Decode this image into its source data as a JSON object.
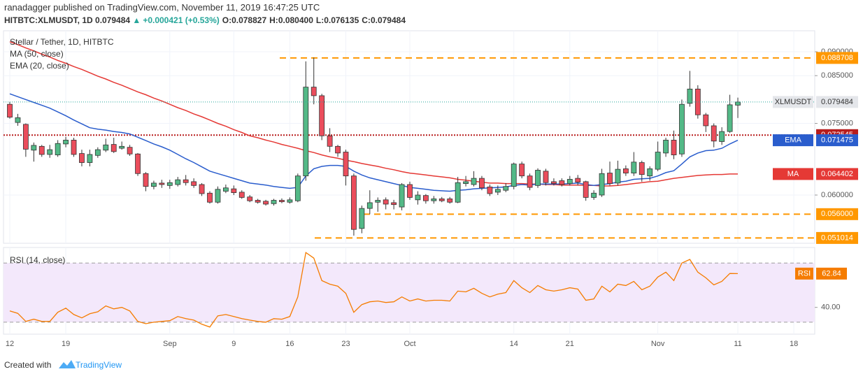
{
  "header": {
    "author": "ranadagger",
    "published": "published on TradingView.com, November 11, 2019 16:47:25 UTC",
    "symbol": "HITBTC:XLMUSDT, 1D",
    "last": "0.079484",
    "arrow": "▲",
    "change": "+0.000421 (+0.53%)",
    "ohlc": [
      {
        "label": "O:",
        "value": "0.078827"
      },
      {
        "label": "H:",
        "value": "0.080400"
      },
      {
        "label": "L:",
        "value": "0.076135"
      },
      {
        "label": "C:",
        "value": "0.079484"
      }
    ]
  },
  "chart_data": [
    {
      "type": "candlestick",
      "title": "Stellar / Tether, 1D, HITBTC",
      "categories": [
        "12",
        null,
        null,
        null,
        null,
        null,
        null,
        "19",
        null,
        null,
        null,
        null,
        null,
        null,
        null,
        null,
        null,
        null,
        null,
        null,
        "Sep",
        null,
        null,
        null,
        null,
        null,
        null,
        null,
        "9",
        null,
        null,
        null,
        null,
        null,
        null,
        "16",
        null,
        null,
        null,
        null,
        null,
        null,
        "23",
        null,
        null,
        null,
        null,
        null,
        null,
        null,
        "Oct",
        null,
        null,
        null,
        null,
        null,
        null,
        null,
        null,
        null,
        null,
        null,
        null,
        "14",
        null,
        null,
        null,
        null,
        null,
        null,
        "21",
        null,
        null,
        null,
        null,
        null,
        null,
        null,
        null,
        null,
        null,
        "Nov",
        null,
        null,
        null,
        null,
        null,
        null,
        null,
        null,
        null,
        "11",
        null,
        null,
        null,
        null,
        null,
        null,
        "18"
      ],
      "series": [
        {
          "name": "XLMUSDT",
          "up_color": "#53b987",
          "down_color": "#eb4d5c",
          "open": [
            0.079,
            0.0752,
            0.0748,
            0.0694,
            0.0702,
            0.0685,
            0.0684,
            0.0707,
            0.0715,
            0.0687,
            0.0668,
            0.0683,
            0.0694,
            0.0706,
            0.0698,
            0.07,
            0.0686,
            0.0645,
            0.0618,
            0.0625,
            0.062,
            0.0622,
            0.0632,
            0.0628,
            0.0622,
            0.0604,
            0.0585,
            0.0608,
            0.0613,
            0.0606,
            0.0596,
            0.0589,
            0.0587,
            0.0582,
            0.0589,
            0.0585,
            0.0588,
            0.064,
            0.0826,
            0.0808,
            0.0724,
            0.0702,
            0.069,
            0.064,
            0.053,
            0.0572,
            0.0585,
            0.059,
            0.0584,
            0.0575,
            0.0622,
            0.059,
            0.0599,
            0.0588,
            0.0592,
            0.0592,
            0.0585,
            0.0624,
            0.0622,
            0.0635,
            0.0617,
            0.0606,
            0.061,
            0.0618,
            0.0665,
            0.064,
            0.062,
            0.065,
            0.0628,
            0.063,
            0.0624,
            0.0635,
            0.0628,
            0.0595,
            0.06,
            0.0646,
            0.0625,
            0.0655,
            0.0646,
            0.0668,
            0.064,
            0.0654,
            0.0688,
            0.0715,
            0.0686,
            0.0792,
            0.0822,
            0.0768,
            0.0745,
            0.0712,
            0.0733,
            0.078827,
            null,
            null,
            null,
            null,
            null,
            null,
            null
          ],
          "high": [
            0.0795,
            0.077,
            0.075,
            0.071,
            0.0705,
            0.0705,
            0.0715,
            0.0722,
            0.072,
            0.0695,
            0.0695,
            0.07,
            0.0718,
            0.072,
            0.0712,
            0.0705,
            0.0688,
            0.0648,
            0.063,
            0.0632,
            0.0632,
            0.0638,
            0.0642,
            0.0635,
            0.0625,
            0.0608,
            0.0618,
            0.0622,
            0.062,
            0.061,
            0.06,
            0.0592,
            0.059,
            0.0592,
            0.0593,
            0.0595,
            0.0645,
            0.088,
            0.0888,
            0.0812,
            0.074,
            0.0705,
            0.0695,
            0.0645,
            0.0578,
            0.061,
            0.0595,
            0.0595,
            0.059,
            0.0625,
            0.0628,
            0.0608,
            0.0602,
            0.0598,
            0.0596,
            0.0596,
            0.0638,
            0.064,
            0.065,
            0.064,
            0.0622,
            0.062,
            0.0625,
            0.0668,
            0.067,
            0.0645,
            0.0656,
            0.0655,
            0.0635,
            0.0635,
            0.064,
            0.0642,
            0.063,
            0.061,
            0.0655,
            0.067,
            0.0672,
            0.0662,
            0.069,
            0.0672,
            0.066,
            0.0712,
            0.072,
            0.0735,
            0.08,
            0.086,
            0.083,
            0.0772,
            0.075,
            0.0742,
            0.081,
            0.0804,
            null,
            null,
            null,
            null,
            null,
            null,
            null
          ],
          "low": [
            0.076,
            0.0745,
            0.068,
            0.067,
            0.068,
            0.0678,
            0.068,
            0.07,
            0.068,
            0.066,
            0.066,
            0.0678,
            0.069,
            0.0688,
            0.0695,
            0.0682,
            0.064,
            0.0608,
            0.0612,
            0.0615,
            0.0613,
            0.0618,
            0.062,
            0.0615,
            0.0598,
            0.0582,
            0.0582,
            0.0604,
            0.06,
            0.0592,
            0.0585,
            0.0582,
            0.0578,
            0.0578,
            0.0583,
            0.0582,
            0.0585,
            0.063,
            0.079,
            0.0715,
            0.069,
            0.068,
            0.062,
            0.0515,
            0.052,
            0.056,
            0.0565,
            0.057,
            0.057,
            0.0568,
            0.059,
            0.058,
            0.0582,
            0.0582,
            0.0585,
            0.0582,
            0.0583,
            0.0618,
            0.0618,
            0.061,
            0.0598,
            0.06,
            0.0606,
            0.0612,
            0.0635,
            0.061,
            0.0615,
            0.062,
            0.062,
            0.0618,
            0.062,
            0.062,
            0.0588,
            0.059,
            0.0596,
            0.062,
            0.062,
            0.064,
            0.064,
            0.0628,
            0.063,
            0.065,
            0.068,
            0.0675,
            0.068,
            0.0785,
            0.076,
            0.0732,
            0.07,
            0.0705,
            0.073,
            0.076135,
            null,
            null,
            null,
            null,
            null,
            null,
            null
          ],
          "close": [
            0.0763,
            0.0762,
            0.0696,
            0.0704,
            0.0685,
            0.0695,
            0.0708,
            0.0715,
            0.0685,
            0.0668,
            0.0685,
            0.0695,
            0.0705,
            0.0691,
            0.0702,
            0.0686,
            0.0645,
            0.0618,
            0.0625,
            0.0622,
            0.0626,
            0.0632,
            0.0626,
            0.062,
            0.0603,
            0.0585,
            0.0612,
            0.0615,
            0.0605,
            0.0595,
            0.0588,
            0.0585,
            0.0581,
            0.0589,
            0.0586,
            0.059,
            0.064,
            0.0826,
            0.0808,
            0.0724,
            0.0702,
            0.0688,
            0.064,
            0.0528,
            0.0572,
            0.0584,
            0.0589,
            0.0581,
            0.058,
            0.0622,
            0.0595,
            0.06,
            0.0588,
            0.0592,
            0.0588,
            0.0585,
            0.0626,
            0.0628,
            0.0635,
            0.0615,
            0.0603,
            0.0612,
            0.0618,
            0.0665,
            0.064,
            0.0616,
            0.0652,
            0.0626,
            0.0624,
            0.0622,
            0.0633,
            0.0627,
            0.0595,
            0.0604,
            0.0645,
            0.0624,
            0.0654,
            0.0646,
            0.0669,
            0.0643,
            0.0655,
            0.069,
            0.0715,
            0.0684,
            0.079,
            0.0822,
            0.0768,
            0.0745,
            0.0713,
            0.0733,
            0.0789,
            0.079484,
            null,
            null,
            null,
            null,
            null,
            null,
            null
          ]
        }
      ],
      "overlays": [
        {
          "name": "MA",
          "legend": "MA (50, close)",
          "color": "#e53935",
          "values": [
            0.0921,
            0.0915,
            0.0908,
            0.0902,
            0.0895,
            0.0889,
            0.0882,
            0.0876,
            0.0869,
            0.0863,
            0.0856,
            0.0849,
            0.0843,
            0.0836,
            0.083,
            0.0823,
            0.0816,
            0.081,
            0.0803,
            0.0797,
            0.079,
            0.0783,
            0.0777,
            0.077,
            0.0764,
            0.0757,
            0.075,
            0.0744,
            0.0737,
            0.0731,
            0.0724,
            0.072,
            0.0715,
            0.0711,
            0.0706,
            0.0702,
            0.0698,
            0.0693,
            0.0689,
            0.0684,
            0.068,
            0.0677,
            0.0673,
            0.067,
            0.0666,
            0.0663,
            0.066,
            0.0656,
            0.0653,
            0.0649,
            0.0646,
            0.0644,
            0.0642,
            0.064,
            0.0638,
            0.0636,
            0.0633,
            0.0631,
            0.0629,
            0.0627,
            0.0625,
            0.0625,
            0.0624,
            0.0624,
            0.0624,
            0.0623,
            0.0623,
            0.0622,
            0.0622,
            0.0621,
            0.0621,
            0.0621,
            0.062,
            0.062,
            0.0619,
            0.0619,
            0.062,
            0.0622,
            0.0624,
            0.0626,
            0.0628,
            0.0629,
            0.0632,
            0.0635,
            0.0637,
            0.0639,
            0.0641,
            0.0642,
            0.0643,
            0.0643,
            0.0644,
            0.064402,
            null,
            null,
            null,
            null,
            null,
            null,
            null
          ]
        },
        {
          "name": "EMA",
          "legend": "EMA (20, close)",
          "color": "#2a5dcd",
          "values": [
            0.0812,
            0.0806,
            0.08,
            0.0794,
            0.0788,
            0.0782,
            0.0774,
            0.0766,
            0.0757,
            0.0749,
            0.0741,
            0.0738,
            0.0736,
            0.0733,
            0.0731,
            0.0728,
            0.0721,
            0.0714,
            0.0707,
            0.0701,
            0.0694,
            0.0685,
            0.0676,
            0.0668,
            0.0659,
            0.065,
            0.0645,
            0.064,
            0.0635,
            0.063,
            0.0625,
            0.0623,
            0.0621,
            0.0618,
            0.0616,
            0.0614,
            0.0616,
            0.064,
            0.0655,
            0.066,
            0.0662,
            0.0662,
            0.066,
            0.065,
            0.0642,
            0.0636,
            0.0632,
            0.0628,
            0.0624,
            0.062,
            0.0616,
            0.0614,
            0.0612,
            0.061,
            0.0609,
            0.0608,
            0.061,
            0.0611,
            0.0613,
            0.0614,
            0.0615,
            0.0616,
            0.0617,
            0.062,
            0.0622,
            0.0621,
            0.0623,
            0.0623,
            0.0623,
            0.0623,
            0.0624,
            0.0625,
            0.0622,
            0.062,
            0.0622,
            0.0624,
            0.0627,
            0.0629,
            0.0633,
            0.0634,
            0.0635,
            0.064,
            0.0647,
            0.0651,
            0.0665,
            0.068,
            0.0688,
            0.0693,
            0.0694,
            0.0698,
            0.0707,
            0.071475,
            null,
            null,
            null,
            null,
            null,
            null,
            null
          ]
        }
      ],
      "levels": [
        {
          "value": 0.088708,
          "color": "#ff9800",
          "style": "dashed"
        },
        {
          "value": 0.072545,
          "color": "#b71c1c",
          "style": "dotted"
        },
        {
          "value": 0.056,
          "label": "0.056000",
          "color": "#ff9800",
          "style": "dashed"
        },
        {
          "value": 0.051014,
          "color": "#ff9800",
          "style": "dashed"
        }
      ],
      "ylim": [
        0.0499,
        0.0944
      ],
      "yticks": [
        {
          "value": 0.09,
          "label": "0.090000"
        },
        {
          "value": 0.085,
          "label": "0.085000"
        },
        {
          "value": 0.075,
          "label": "0.075000"
        },
        {
          "value": 0.06,
          "label": "0.060000"
        }
      ],
      "grid": true
    },
    {
      "type": "line",
      "title": "RSI (14, close)",
      "series": [
        {
          "name": "RSI",
          "color": "#f57c00",
          "values": [
            37.6,
            36,
            30.5,
            32,
            30.5,
            30.5,
            36.7,
            39.5,
            35.2,
            32.9,
            35.7,
            37,
            41,
            39,
            40,
            37.6,
            30.5,
            29,
            30,
            30.5,
            31,
            33.8,
            32.4,
            31.4,
            28.6,
            26.7,
            34.3,
            35.2,
            33.8,
            32.4,
            31.4,
            30.5,
            30,
            32.4,
            32,
            33.8,
            47.1,
            77.1,
            73.3,
            58.1,
            55.7,
            54.3,
            49.5,
            36.7,
            41.9,
            43.8,
            44.3,
            43.3,
            43.8,
            47.1,
            44.3,
            45.7,
            44.3,
            44.8,
            44.8,
            44.3,
            51,
            50.5,
            52.9,
            49.5,
            47.1,
            49,
            50,
            58.1,
            53.3,
            50,
            54.8,
            51.9,
            51,
            51.9,
            53.3,
            52.4,
            44.8,
            45.7,
            54.3,
            50.5,
            55.7,
            54.8,
            57.6,
            51.9,
            54.3,
            60.5,
            63.8,
            58.1,
            70,
            72.4,
            63.8,
            60,
            55.2,
            57.6,
            62.9,
            62.84,
            null,
            null,
            null,
            null,
            null,
            null,
            null
          ]
        }
      ],
      "bands": [
        30,
        70
      ],
      "ylim": [
        21.9,
        80.5
      ],
      "yticks": [
        {
          "value": 40,
          "label": "40.00"
        }
      ],
      "grid": true
    }
  ],
  "footer": {
    "prefix": "Created with",
    "brand": "TradingView"
  }
}
